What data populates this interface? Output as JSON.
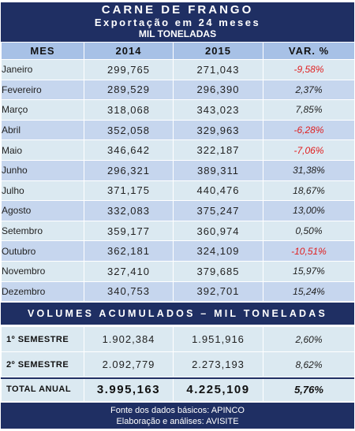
{
  "header": {
    "title": "CARNE DE FRANGO",
    "subtitle": "Exportação em 24 meses",
    "unit": "MIL TONELADAS"
  },
  "columns": [
    "MES",
    "2014",
    "2015",
    "VAR. %"
  ],
  "rows": [
    {
      "mes": "Janeiro",
      "v2014": "299,765",
      "v2015": "271,043",
      "var": "-9,58%",
      "neg": true
    },
    {
      "mes": "Fevereiro",
      "v2014": "289,529",
      "v2015": "296,390",
      "var": "2,37%",
      "neg": false
    },
    {
      "mes": "Março",
      "v2014": "318,068",
      "v2015": "343,023",
      "var": "7,85%",
      "neg": false
    },
    {
      "mes": "Abril",
      "v2014": "352,058",
      "v2015": "329,963",
      "var": "-6,28%",
      "neg": true
    },
    {
      "mes": "Maio",
      "v2014": "346,642",
      "v2015": "322,187",
      "var": "-7,06%",
      "neg": true
    },
    {
      "mes": "Junho",
      "v2014": "296,321",
      "v2015": "389,311",
      "var": "31,38%",
      "neg": false
    },
    {
      "mes": "Julho",
      "v2014": "371,175",
      "v2015": "440,476",
      "var": "18,67%",
      "neg": false
    },
    {
      "mes": "Agosto",
      "v2014": "332,083",
      "v2015": "375,247",
      "var": "13,00%",
      "neg": false
    },
    {
      "mes": "Setembro",
      "v2014": "359,177",
      "v2015": "360,974",
      "var": "0,50%",
      "neg": false
    },
    {
      "mes": "Outubro",
      "v2014": "362,181",
      "v2015": "324,109",
      "var": "-10,51%",
      "neg": true
    },
    {
      "mes": "Novembro",
      "v2014": "327,410",
      "v2015": "379,685",
      "var": "15,97%",
      "neg": false
    },
    {
      "mes": "Dezembro",
      "v2014": "340,753",
      "v2015": "392,701",
      "var": "15,24%",
      "neg": false
    }
  ],
  "accum": {
    "title": "VOLUMES ACUMULADOS – MIL TONELADAS",
    "rows": [
      {
        "label": "1º SEMESTRE",
        "v2014": "1.902,384",
        "v2015": "1.951,916",
        "var": "2,60%"
      },
      {
        "label": "2º SEMESTRE",
        "v2014": "2.092,779",
        "v2015": "2.273,193",
        "var": "8,62%"
      },
      {
        "label": "TOTAL ANUAL",
        "v2014": "3.995,163",
        "v2015": "4.225,109",
        "var": "5,76%"
      }
    ]
  },
  "footer": {
    "line1": "Fonte dos dados básicos: APINCO",
    "line2": "Elaboração e análises: AVISITE"
  },
  "colors": {
    "header_bg": "#1f2f63",
    "col_header_bg": "#a7c1e6",
    "row_light": "#dbe9f1",
    "row_dark": "#c6d6ee",
    "negative": "#e02020"
  }
}
